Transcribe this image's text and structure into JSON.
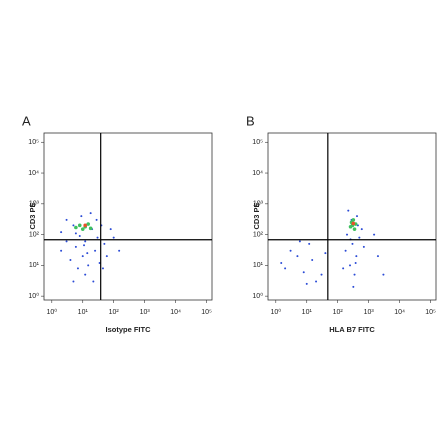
{
  "chart_data": [
    {
      "type": "scatter",
      "panel_label": "A",
      "xlabel": "Isotype FITC",
      "ylabel": "CD3 PE",
      "xscale": "log",
      "yscale": "log",
      "xlim": [
        0.56,
        150000
      ],
      "ylim": [
        0.75,
        200000
      ],
      "xticks": [
        {
          "value": 1,
          "label": "10⁰"
        },
        {
          "value": 10,
          "label": "10¹"
        },
        {
          "value": 100,
          "label": "10²"
        },
        {
          "value": 1000,
          "label": "10³"
        },
        {
          "value": 10000,
          "label": "10⁴"
        },
        {
          "value": 100000,
          "label": "10⁵"
        }
      ],
      "yticks": [
        {
          "value": 1,
          "label": "10⁰"
        },
        {
          "value": 10,
          "label": "10¹"
        },
        {
          "value": 100,
          "label": "10²"
        },
        {
          "value": 1000,
          "label": "10³"
        },
        {
          "value": 10000,
          "label": "10⁴"
        },
        {
          "value": 100000,
          "label": "10⁵"
        }
      ],
      "gate_x": 38,
      "gate_y": 68,
      "series": [
        {
          "color": "#2b4bd6",
          "x": [
            3,
            5,
            8,
            12,
            20,
            30,
            6,
            10,
            15,
            4,
            25,
            40,
            2,
            7,
            12,
            50,
            60,
            9,
            18,
            3,
            35,
            22,
            5,
            100,
            150,
            80,
            14,
            28,
            45,
            2,
            11,
            6
          ],
          "y": [
            300,
            200,
            90,
            60,
            150,
            80,
            40,
            20,
            10,
            15,
            30,
            200,
            120,
            8,
            5,
            50,
            20,
            400,
            500,
            60,
            12,
            3,
            3,
            80,
            30,
            150,
            25,
            300,
            8,
            30,
            45,
            110
          ]
        },
        {
          "color": "#3fc060",
          "x": [
            8,
            12,
            15,
            10,
            18,
            6
          ],
          "y": [
            200,
            180,
            220,
            150,
            160,
            170
          ]
        },
        {
          "color": "#e8502a",
          "x": [
            12
          ],
          "y": [
            200
          ]
        }
      ]
    },
    {
      "type": "scatter",
      "panel_label": "B",
      "xlabel": "HLA B7 FITC",
      "ylabel": "CD3 PE",
      "xscale": "log",
      "yscale": "log",
      "xlim": [
        0.56,
        150000
      ],
      "ylim": [
        0.75,
        200000
      ],
      "xticks": [
        {
          "value": 1,
          "label": "10⁰"
        },
        {
          "value": 10,
          "label": "10¹"
        },
        {
          "value": 100,
          "label": "10²"
        },
        {
          "value": 1000,
          "label": "10³"
        },
        {
          "value": 10000,
          "label": "10⁴"
        },
        {
          "value": 100000,
          "label": "10⁵"
        }
      ],
      "yticks": [
        {
          "value": 1,
          "label": "10⁰"
        },
        {
          "value": 10,
          "label": "10¹"
        },
        {
          "value": 100,
          "label": "10²"
        },
        {
          "value": 1000,
          "label": "10³"
        },
        {
          "value": 10000,
          "label": "10⁴"
        },
        {
          "value": 100000,
          "label": "10⁵"
        }
      ],
      "gate_x": 48,
      "gate_y": 68,
      "series": [
        {
          "color": "#2b4bd6",
          "x": [
            200,
            300,
            400,
            250,
            350,
            500,
            180,
            600,
            280,
            450,
            320,
            220,
            700,
            150,
            380,
            260,
            420,
            5,
            8,
            3,
            12,
            2,
            20,
            6,
            15,
            30,
            1.5,
            10,
            40,
            2000,
            1500,
            3000
          ],
          "y": [
            100,
            50,
            20,
            10,
            5,
            80,
            30,
            150,
            300,
            200,
            2,
            600,
            40,
            8,
            12,
            70,
            400,
            20,
            6,
            30,
            50,
            8,
            3,
            60,
            15,
            5,
            12,
            2.5,
            25,
            20,
            100,
            5
          ]
        },
        {
          "color": "#3fc060",
          "x": [
            300,
            350,
            280,
            320,
            260,
            380
          ],
          "y": [
            200,
            150,
            250,
            300,
            180,
            220
          ]
        },
        {
          "color": "#e8502a",
          "x": [
            320
          ],
          "y": [
            230
          ]
        }
      ]
    }
  ]
}
